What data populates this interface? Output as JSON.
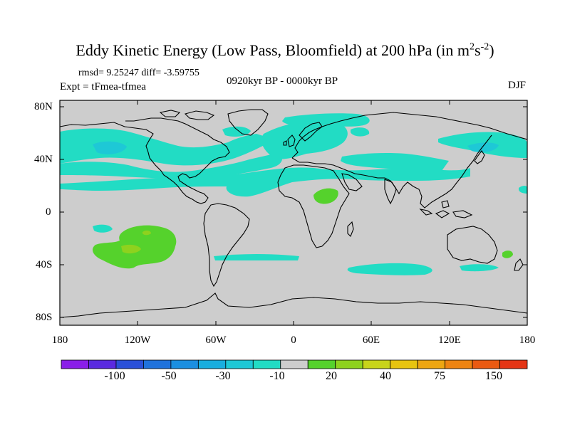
{
  "title": {
    "main": "Eddy Kinetic Energy (Low Pass, Bloomfield) at 200 hPa (in m",
    "sup1": "2",
    "mid": "s",
    "sup2": "-2",
    "end": ")"
  },
  "stats": {
    "rmsd_text": "rmsd= 9.25247 diff= -3.59755"
  },
  "experiment": "Expt = tFmea-tfmea",
  "period": "0920kyr BP - 0000kyr BP",
  "season": "DJF",
  "y_axis": {
    "ticks": [
      "80N",
      "40N",
      "0",
      "40S",
      "80S"
    ]
  },
  "x_axis": {
    "ticks": [
      "180",
      "120W",
      "60W",
      "0",
      "60E",
      "120E",
      "180"
    ]
  },
  "colorbar": {
    "colors": [
      "#8a1ee8",
      "#5a2ae0",
      "#2a50d8",
      "#1f72dc",
      "#1b8fe0",
      "#19aedf",
      "#1ec8d6",
      "#22dcc4",
      "#cdcdcd",
      "#55d22c",
      "#8ed21e",
      "#c8d41a",
      "#e8c410",
      "#eda612",
      "#ee8412",
      "#ea5a12",
      "#e53515"
    ],
    "labels": [
      "-100",
      "-50",
      "-30",
      "-10",
      "20",
      "40",
      "75",
      "150"
    ]
  },
  "map": {
    "background": "#cdcdcd",
    "negative_fill": "#22dcc4",
    "negative_dark": "#1ec8d6",
    "positive_fill": "#55d22c",
    "positive_light": "#8ed21e"
  }
}
